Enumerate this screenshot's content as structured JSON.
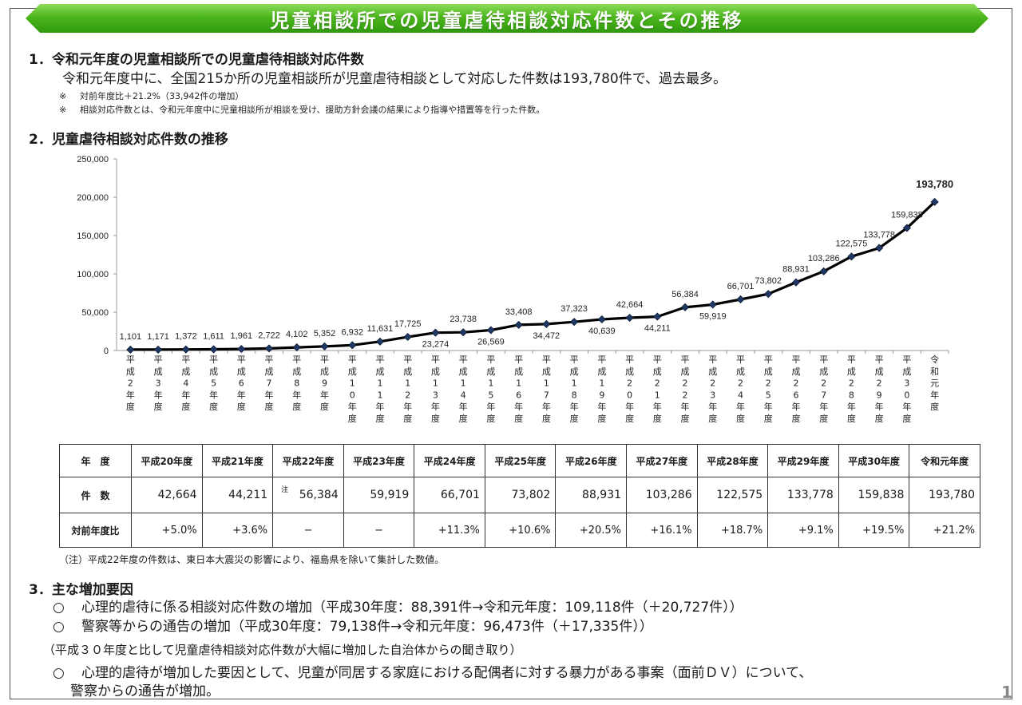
{
  "title": "児童相談所での児童虐待相談対応件数とその推移",
  "section1": {
    "heading": "1．令和元年度の児童相談所での児童虐待相談対応件数",
    "text": "令和元年度中に、全国215か所の児童相談所が児童虐待相談として対応した件数は193,780件で、過去最多。",
    "notes": [
      {
        "mark": "※",
        "text": "対前年度比＋21.2%（33,942件の増加）"
      },
      {
        "mark": "※",
        "text": "相談対応件数とは、令和元年度中に児童相談所が相談を受け、援助方針会議の結果により指導や措置等を行った件数。"
      }
    ]
  },
  "section2": {
    "heading": "2．児童虐待相談対応件数の推移"
  },
  "chart_data": {
    "type": "line",
    "title": "",
    "xlabel": "",
    "ylabel": "",
    "ylim": [
      0,
      250000
    ],
    "yticks": [
      "0",
      "50,000",
      "100,000",
      "150,000",
      "200,000",
      "250,000"
    ],
    "grid": false,
    "categories": [
      "平成2年度",
      "平成3年度",
      "平成4年度",
      "平成5年度",
      "平成6年度",
      "平成7年度",
      "平成8年度",
      "平成9年度",
      "平成10年度",
      "平成11年度",
      "平成12年度",
      "平成13年度",
      "平成14年度",
      "平成15年度",
      "平成16年度",
      "平成17年度",
      "平成18年度",
      "平成19年度",
      "平成20年度",
      "平成21年度",
      "平成22年度",
      "平成23年度",
      "平成24年度",
      "平成25年度",
      "平成26年度",
      "平成27年度",
      "平成28年度",
      "平成29年度",
      "平成30年度",
      "令和元年度"
    ],
    "values": [
      1101,
      1171,
      1372,
      1611,
      1961,
      2722,
      4102,
      5352,
      6932,
      11631,
      17725,
      23274,
      23738,
      26569,
      33408,
      34472,
      37323,
      40639,
      42664,
      44211,
      56384,
      59919,
      66701,
      73802,
      88931,
      103286,
      122575,
      133778,
      159838,
      193780
    ],
    "labels": [
      "1,101",
      "1,171",
      "1,372",
      "1,611",
      "1,961",
      "2,722",
      "4,102",
      "5,352",
      "6,932",
      "11,631",
      "17,725",
      "23,274",
      "23,738",
      "26,569",
      "33,408",
      "34,472",
      "37,323",
      "40,639",
      "42,664",
      "44,211",
      "56,384",
      "59,919",
      "66,701",
      "73,802",
      "88,931",
      "103,286",
      "122,575",
      "133,778",
      "159,838",
      "193,780"
    ],
    "label_below": [
      11,
      13,
      15,
      17,
      19,
      21
    ],
    "highlight_last": true,
    "line_color": "#000000",
    "marker_color": "#1f3864"
  },
  "table": {
    "header_label": "年　度",
    "count_label": "件　数",
    "ratio_label": "対前年度比",
    "years": [
      "平成20年度",
      "平成21年度",
      "平成22年度",
      "平成23年度",
      "平成24年度",
      "平成25年度",
      "平成26年度",
      "平成27年度",
      "平成28年度",
      "平成29年度",
      "平成30年度",
      "令和元年度"
    ],
    "counts": [
      "42,664",
      "44,211",
      "56,384",
      "59,919",
      "66,701",
      "73,802",
      "88,931",
      "103,286",
      "122,575",
      "133,778",
      "159,838",
      "193,780"
    ],
    "note_mark": "注",
    "ratios": [
      "+5.0%",
      "+3.6%",
      "−",
      "−",
      "+11.3%",
      "+10.6%",
      "+20.5%",
      "+16.1%",
      "+18.7%",
      "+9.1%",
      "+19.5%",
      "+21.2%"
    ],
    "footnote": "（注）平成22年度の件数は、東日本大震災の影響により、福島県を除いて集計した数値。"
  },
  "section3": {
    "heading": "3．主な増加要因",
    "bullets": [
      "心理的虐待に係る相談対応件数の増加（平成30年度：88,391件→令和元年度：109,118件（＋20,727件））",
      "警察等からの通告の増加（平成30年度：79,138件→令和元年度：96,473件（＋17,335件））"
    ],
    "subheading": "（平成３０年度と比して児童虐待相談対応件数が大幅に増加した自治体からの聞き取り）",
    "bullet3_line1": "心理的虐待が増加した要因として、児童が同居する家庭における配偶者に対する暴力がある事案（面前ＤＶ）について、",
    "bullet3_line2": "警察からの通告が増加。",
    "circle": "○"
  },
  "page_number": "1"
}
